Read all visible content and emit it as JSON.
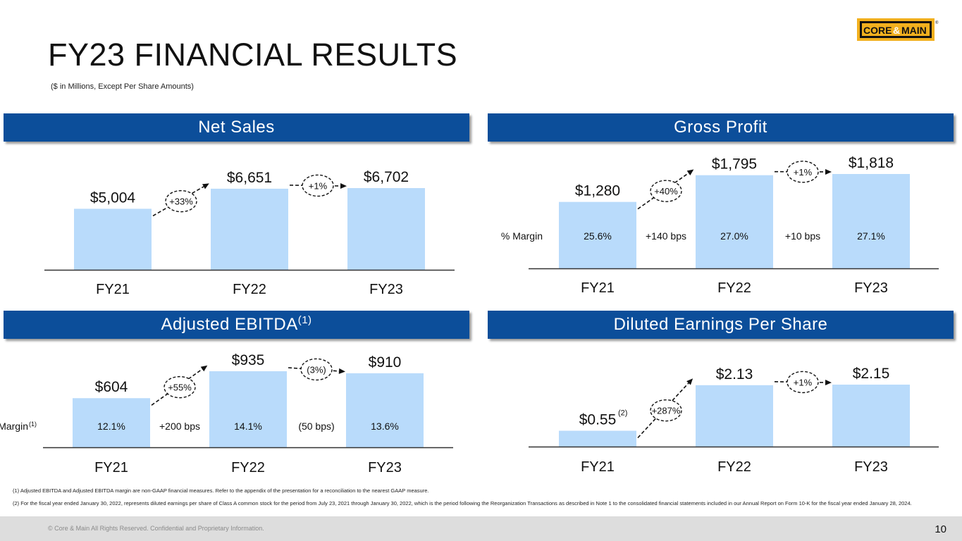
{
  "title": "FY23 FINANCIAL RESULTS",
  "subtitle": "($ in Millions, Except Per Share Amounts)",
  "logo_text": {
    "left": "CORE",
    "amp": "&",
    "right": "MAIN",
    "mark": "®"
  },
  "colors": {
    "header": "#0c4e9a",
    "bar": "#b9dbfb",
    "axis": "#333333"
  },
  "panels": {
    "net_sales": {
      "title": "Net Sales",
      "title_sup": ""
    },
    "gross_profit": {
      "title": "Gross Profit",
      "title_sup": ""
    },
    "ebitda": {
      "title": "Adjusted EBITDA",
      "title_sup": "(1)"
    },
    "eps": {
      "title": "Diluted Earnings Per Share",
      "title_sup": ""
    }
  },
  "chart_data": [
    {
      "id": "net_sales",
      "type": "bar",
      "categories": [
        "FY21",
        "FY22",
        "FY23"
      ],
      "values": [
        5004,
        6651,
        6702
      ],
      "labels": [
        "$5,004",
        "$6,651",
        "$6,702"
      ],
      "label_sups": [
        "",
        "",
        ""
      ],
      "growth": [
        "+33%",
        "+1%"
      ],
      "margin_label": "",
      "margin_label_sup": "",
      "margins": [],
      "margin_changes": []
    },
    {
      "id": "gross_profit",
      "type": "bar",
      "categories": [
        "FY21",
        "FY22",
        "FY23"
      ],
      "values": [
        1280,
        1795,
        1818
      ],
      "labels": [
        "$1,280",
        "$1,795",
        "$1,818"
      ],
      "label_sups": [
        "",
        "",
        ""
      ],
      "growth": [
        "+40%",
        "+1%"
      ],
      "margin_label": "% Margin",
      "margin_label_sup": "",
      "margins": [
        "25.6%",
        "27.0%",
        "27.1%"
      ],
      "margin_changes": [
        "+140 bps",
        "+10 bps"
      ]
    },
    {
      "id": "ebitda",
      "type": "bar",
      "categories": [
        "FY21",
        "FY22",
        "FY23"
      ],
      "values": [
        604,
        935,
        910
      ],
      "labels": [
        "$604",
        "$935",
        "$910"
      ],
      "label_sups": [
        "",
        "",
        ""
      ],
      "growth": [
        "+55%",
        "(3%)"
      ],
      "margin_label": "% Margin",
      "margin_label_sup": "(1)",
      "margins": [
        "12.1%",
        "14.1%",
        "13.6%"
      ],
      "margin_changes": [
        "+200 bps",
        "(50 bps)"
      ]
    },
    {
      "id": "eps",
      "type": "bar",
      "categories": [
        "FY21",
        "FY22",
        "FY23"
      ],
      "values": [
        0.55,
        2.13,
        2.15
      ],
      "labels": [
        "$0.55",
        "$2.13",
        "$2.15"
      ],
      "label_sups": [
        "(2)",
        "",
        ""
      ],
      "growth": [
        "+287%",
        "+1%"
      ],
      "margin_label": "",
      "margin_label_sup": "",
      "margins": [],
      "margin_changes": []
    }
  ],
  "footnotes": [
    "(1) Adjusted EBITDA and Adjusted EBITDA margin are non-GAAP financial measures. Refer to the appendix of the presentation for a reconciliation to the nearest GAAP measure.",
    "(2) For the fiscal year ended January 30, 2022, represents diluted earnings per share of Class A common stock for the period from July 23, 2021 through January 30, 2022, which is the period following the Reorganization Transactions as described in Note 1 to the consolidated financial statements included in our Annual Report on Form 10-K for the fiscal year ended January 28, 2024."
  ],
  "footer": {
    "copyright": "© Core & Main  All Rights Reserved. Confidential and Proprietary Information.",
    "page_number": "10"
  }
}
